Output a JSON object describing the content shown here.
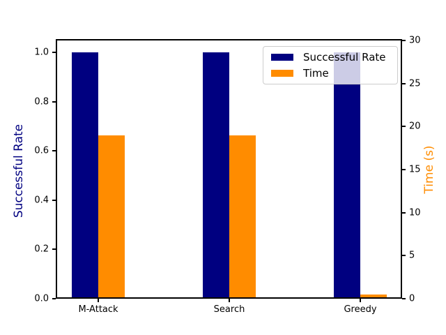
{
  "chart_data": {
    "type": "bar",
    "title": "",
    "categories": [
      "M-Attack",
      "Search",
      "Greedy"
    ],
    "series": [
      {
        "name": "Successful Rate",
        "axis": "left",
        "color": "#000080",
        "values": [
          1.0,
          1.0,
          1.0
        ]
      },
      {
        "name": "Time",
        "axis": "right",
        "color": "#ff8c00",
        "values": [
          19,
          19,
          0.5
        ]
      }
    ],
    "left_axis": {
      "label": "Successful Rate",
      "color": "#000080",
      "ticks": [
        0.0,
        0.2,
        0.4,
        0.6,
        0.8,
        1.0
      ],
      "ylim": [
        0,
        1.054
      ],
      "tick_format": "one_decimal"
    },
    "right_axis": {
      "label": "Time (s)",
      "color": "#ff8c00",
      "ticks": [
        0,
        5,
        10,
        15,
        20,
        25,
        30
      ],
      "ylim": [
        0,
        30.16
      ],
      "tick_format": "integer"
    },
    "legend": {
      "position": "upper right",
      "entries": [
        "Successful Rate",
        "Time"
      ]
    },
    "grid": false,
    "background": "#ffffff"
  }
}
